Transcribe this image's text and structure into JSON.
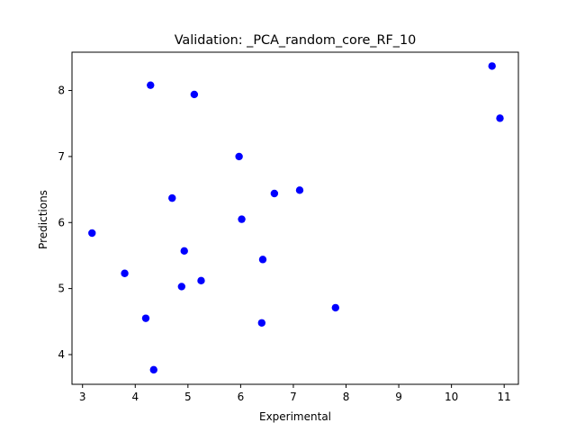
{
  "chart_data": {
    "type": "scatter",
    "title": "Validation: _PCA_random_core_RF_10",
    "xlabel": "Experimental",
    "ylabel": "Predictions",
    "xlim": [
      2.8,
      11.27
    ],
    "ylim": [
      3.55,
      8.58
    ],
    "xticks": [
      3,
      4,
      5,
      6,
      7,
      8,
      9,
      10,
      11
    ],
    "yticks": [
      4,
      5,
      6,
      7,
      8
    ],
    "grid": false,
    "marker_color": "#0000ff",
    "points": [
      {
        "x": 3.18,
        "y": 5.84
      },
      {
        "x": 3.8,
        "y": 5.23
      },
      {
        "x": 4.2,
        "y": 4.55
      },
      {
        "x": 4.29,
        "y": 8.08
      },
      {
        "x": 4.35,
        "y": 3.77
      },
      {
        "x": 4.7,
        "y": 6.37
      },
      {
        "x": 4.88,
        "y": 5.03
      },
      {
        "x": 4.93,
        "y": 5.57
      },
      {
        "x": 5.12,
        "y": 7.94
      },
      {
        "x": 5.25,
        "y": 5.12
      },
      {
        "x": 5.97,
        "y": 7.0
      },
      {
        "x": 6.02,
        "y": 6.05
      },
      {
        "x": 6.4,
        "y": 4.48
      },
      {
        "x": 6.42,
        "y": 5.44
      },
      {
        "x": 6.64,
        "y": 6.44
      },
      {
        "x": 7.12,
        "y": 6.49
      },
      {
        "x": 7.8,
        "y": 4.71
      },
      {
        "x": 10.77,
        "y": 8.37
      },
      {
        "x": 10.92,
        "y": 7.58
      }
    ]
  }
}
